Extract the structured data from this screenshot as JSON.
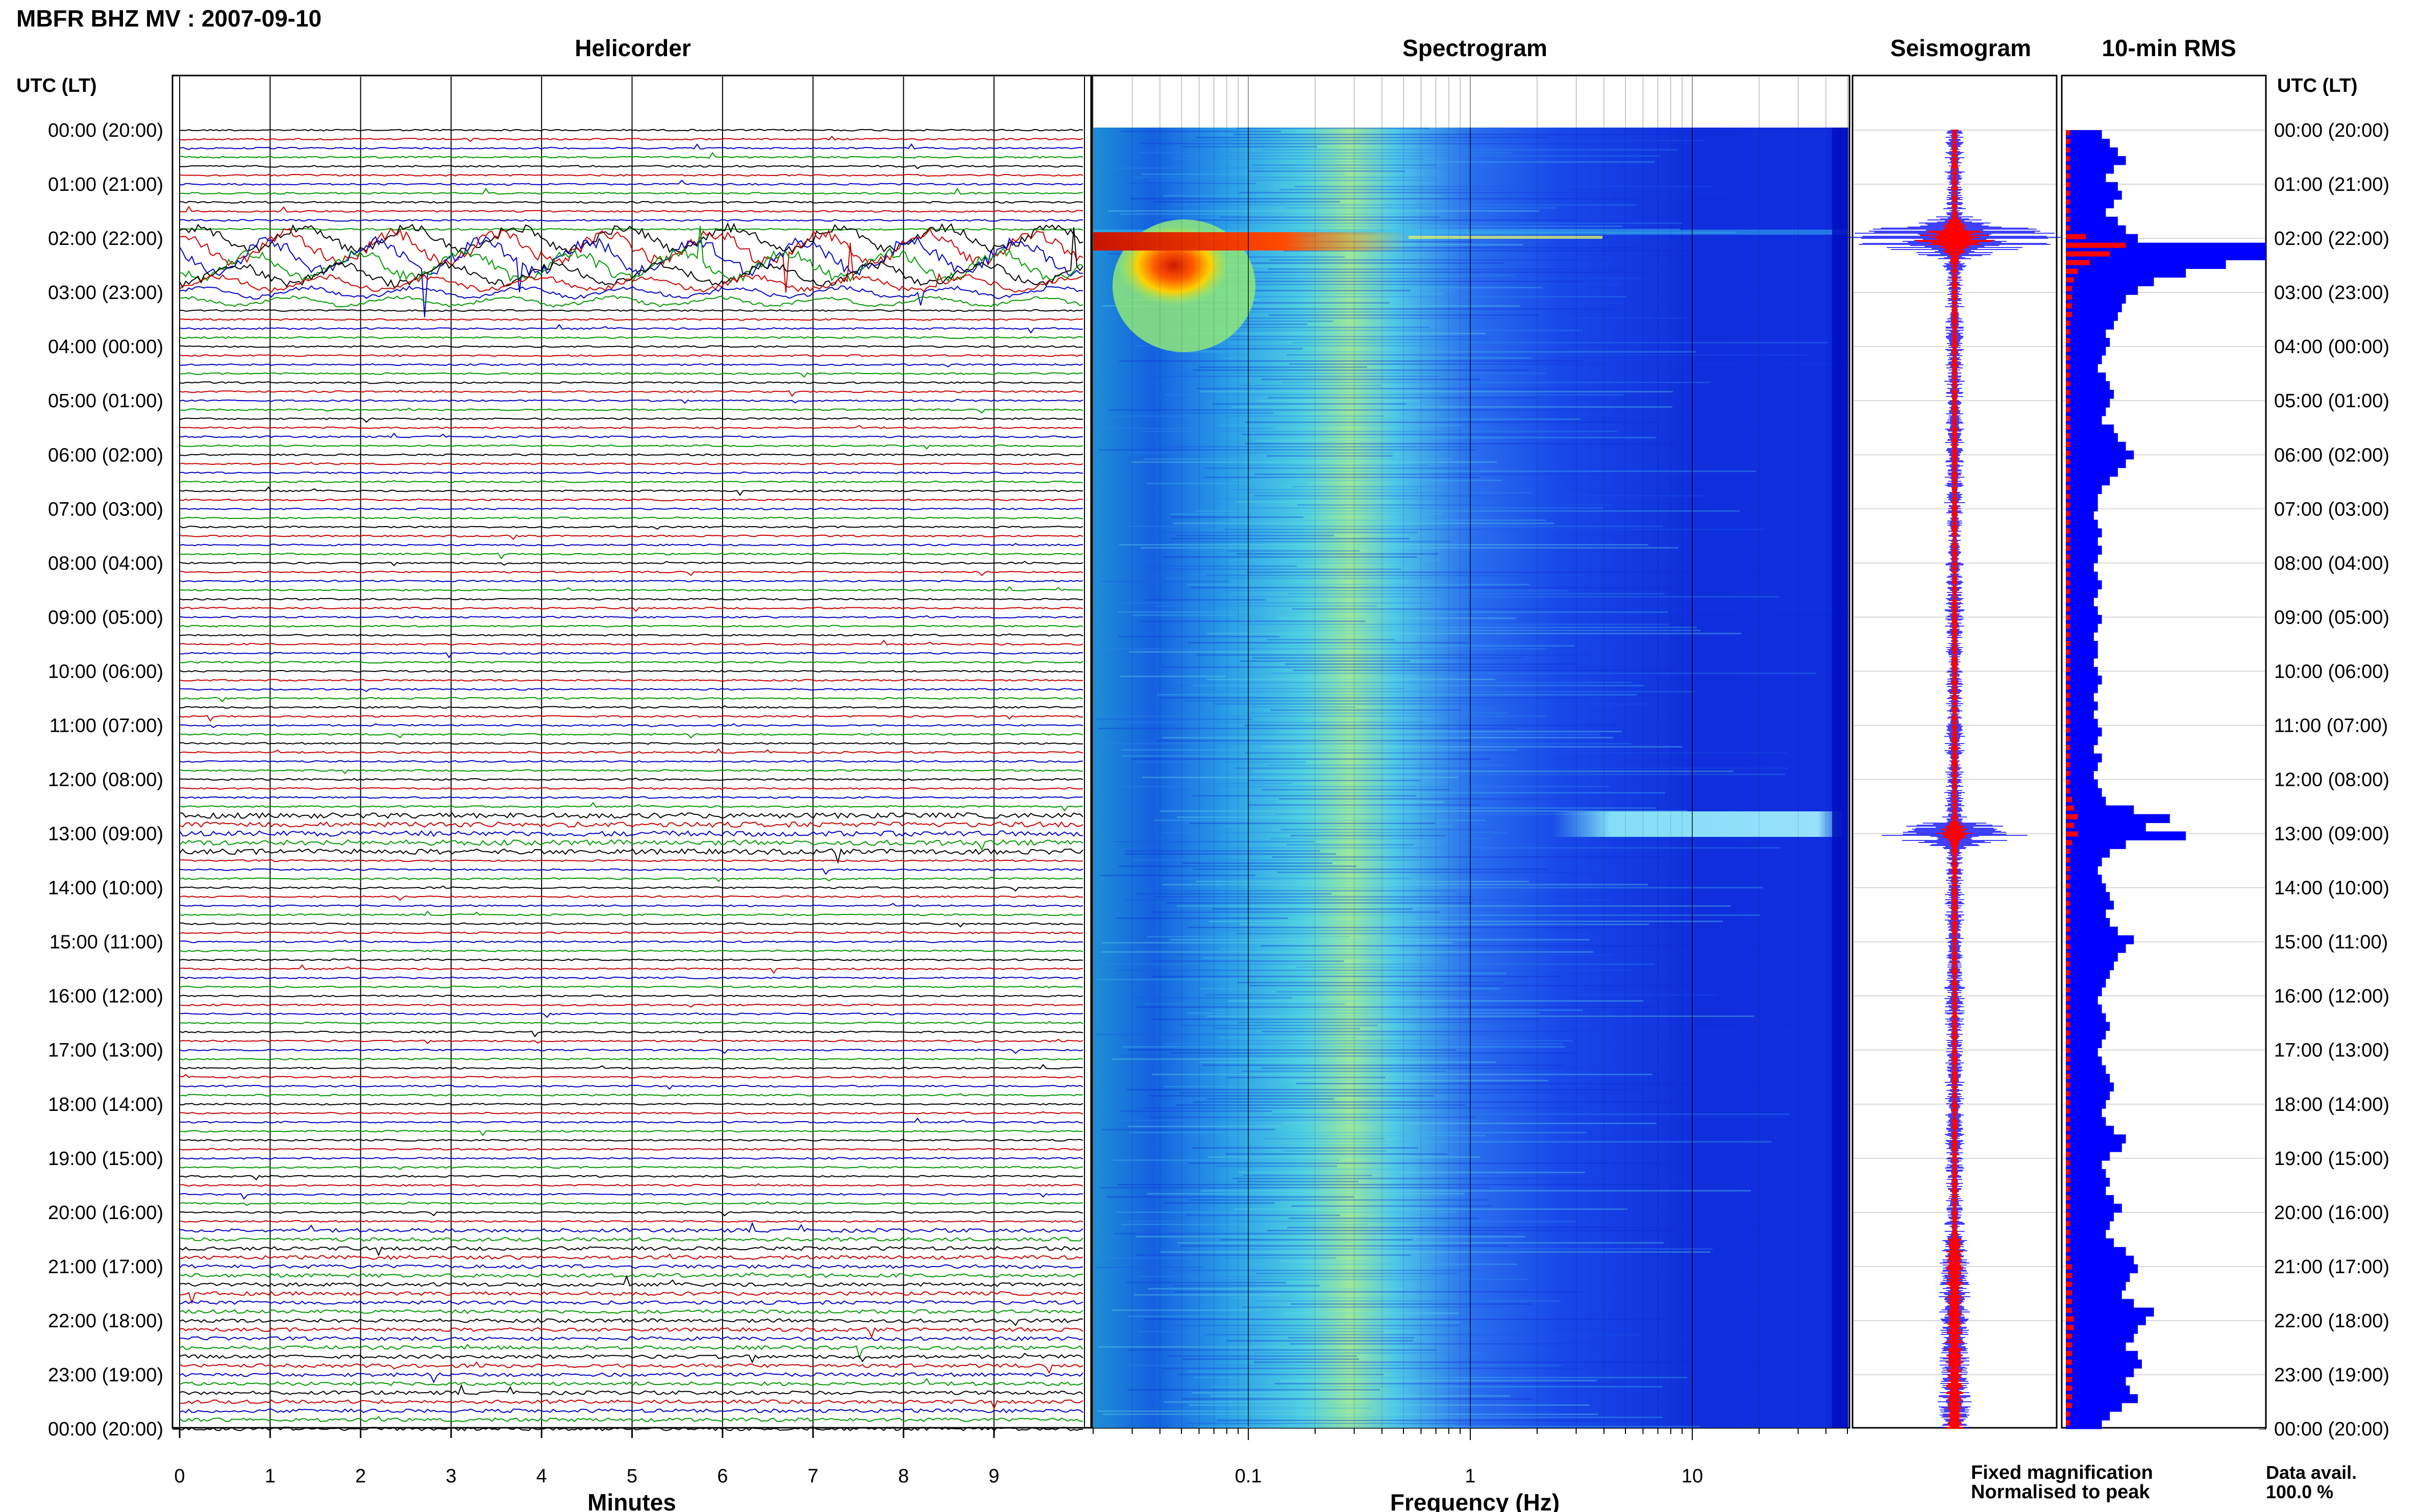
{
  "header": {
    "title": "MBFR BHZ MV : 2007-09-10"
  },
  "legend": {
    "fixed": "Fixed magnification",
    "normalised": "Normalised to peak",
    "fixed_color": "#0000ff",
    "normalised_color": "#ff0000"
  },
  "availability": {
    "label": "Data avail.",
    "value": "100.0 %"
  },
  "chart_data": [
    {
      "type": "helicorder",
      "title": "Helicorder",
      "xlabel": "Minutes",
      "xlim": [
        0,
        10
      ],
      "x_ticks": [
        "0",
        "1",
        "2",
        "3",
        "4",
        "5",
        "6",
        "7",
        "8",
        "9"
      ],
      "y_axis_label": "UTC (LT)",
      "y_ticks": [
        "00:00 (20:00)",
        "01:00 (21:00)",
        "02:00 (22:00)",
        "03:00 (23:00)",
        "04:00 (00:00)",
        "05:00 (01:00)",
        "06:00 (02:00)",
        "07:00 (03:00)",
        "08:00 (04:00)",
        "09:00 (05:00)",
        "10:00 (06:00)",
        "11:00 (07:00)",
        "12:00 (08:00)",
        "13:00 (09:00)",
        "14:00 (10:00)",
        "15:00 (11:00)",
        "16:00 (12:00)",
        "17:00 (13:00)",
        "18:00 (14:00)",
        "19:00 (15:00)",
        "20:00 (16:00)",
        "21:00 (17:00)",
        "22:00 (18:00)",
        "23:00 (19:00)",
        "00:00 (20:00)"
      ],
      "trace_colors": [
        "#000000",
        "#cc0000",
        "#0000cc",
        "#009900"
      ],
      "traces_per_hour": 6
    },
    {
      "type": "heatmap",
      "title": "Spectrogram",
      "xlabel": "Frequency (Hz)",
      "x_scale": "log",
      "xlim": [
        0.02,
        50
      ],
      "x_ticks": [
        "0.1",
        "1",
        "10"
      ],
      "x_tick_values": [
        0.1,
        1,
        10
      ]
    },
    {
      "type": "line",
      "title": "Seismogram",
      "series": [
        {
          "name": "Fixed magnification",
          "color": "#0000ff"
        },
        {
          "name": "Normalised to peak",
          "color": "#ff0000"
        }
      ],
      "events_hours_utc": [
        2.0,
        13.0
      ]
    },
    {
      "type": "bar",
      "title": "10-min RMS",
      "orientation": "horizontal",
      "y_axis_label": "UTC (LT)",
      "y_ticks": [
        "00:00 (20:00)",
        "01:00 (21:00)",
        "02:00 (22:00)",
        "03:00 (23:00)",
        "04:00 (00:00)",
        "05:00 (01:00)",
        "06:00 (02:00)",
        "07:00 (03:00)",
        "08:00 (04:00)",
        "09:00 (05:00)",
        "10:00 (06:00)",
        "11:00 (07:00)",
        "12:00 (08:00)",
        "13:00 (09:00)",
        "14:00 (10:00)",
        "15:00 (11:00)",
        "16:00 (12:00)",
        "17:00 (13:00)",
        "18:00 (14:00)",
        "19:00 (15:00)",
        "20:00 (16:00)",
        "21:00 (17:00)",
        "22:00 (18:00)",
        "23:00 (19:00)",
        "00:00 (20:00)"
      ],
      "values": [
        0.18,
        0.22,
        0.26,
        0.3,
        0.24,
        0.2,
        0.26,
        0.28,
        0.24,
        0.2,
        0.26,
        0.3,
        0.36,
        1.0,
        1.0,
        0.8,
        0.6,
        0.44,
        0.36,
        0.3,
        0.28,
        0.26,
        0.24,
        0.2,
        0.22,
        0.2,
        0.18,
        0.16,
        0.2,
        0.22,
        0.24,
        0.22,
        0.2,
        0.18,
        0.24,
        0.26,
        0.3,
        0.34,
        0.3,
        0.26,
        0.22,
        0.18,
        0.16,
        0.16,
        0.14,
        0.16,
        0.18,
        0.16,
        0.18,
        0.16,
        0.14,
        0.16,
        0.18,
        0.16,
        0.14,
        0.16,
        0.18,
        0.16,
        0.14,
        0.16,
        0.16,
        0.14,
        0.16,
        0.18,
        0.16,
        0.14,
        0.16,
        0.14,
        0.16,
        0.18,
        0.16,
        0.14,
        0.18,
        0.16,
        0.14,
        0.16,
        0.18,
        0.2,
        0.34,
        0.52,
        0.4,
        0.6,
        0.3,
        0.22,
        0.18,
        0.16,
        0.18,
        0.2,
        0.22,
        0.24,
        0.2,
        0.22,
        0.26,
        0.34,
        0.3,
        0.26,
        0.24,
        0.22,
        0.2,
        0.18,
        0.16,
        0.18,
        0.2,
        0.22,
        0.2,
        0.18,
        0.16,
        0.18,
        0.2,
        0.22,
        0.24,
        0.22,
        0.2,
        0.18,
        0.2,
        0.24,
        0.3,
        0.28,
        0.22,
        0.18,
        0.2,
        0.22,
        0.2,
        0.24,
        0.28,
        0.24,
        0.22,
        0.2,
        0.24,
        0.3,
        0.34,
        0.36,
        0.32,
        0.3,
        0.28,
        0.34,
        0.44,
        0.4,
        0.36,
        0.34,
        0.3,
        0.36,
        0.38,
        0.34,
        0.3,
        0.32,
        0.36,
        0.28,
        0.22,
        0.18
      ],
      "normalised_values": [
        0.02,
        0.02,
        0.02,
        0.02,
        0.02,
        0.02,
        0.02,
        0.02,
        0.02,
        0.02,
        0.02,
        0.02,
        0.1,
        0.3,
        0.22,
        0.12,
        0.06,
        0.04,
        0.03,
        0.03,
        0.03,
        0.03,
        0.02,
        0.02,
        0.02,
        0.02,
        0.02,
        0.02,
        0.02,
        0.02,
        0.02,
        0.02,
        0.02,
        0.02,
        0.02,
        0.02,
        0.02,
        0.02,
        0.02,
        0.02,
        0.02,
        0.02,
        0.02,
        0.02,
        0.02,
        0.02,
        0.02,
        0.02,
        0.02,
        0.02,
        0.02,
        0.02,
        0.02,
        0.02,
        0.02,
        0.02,
        0.02,
        0.02,
        0.02,
        0.02,
        0.02,
        0.02,
        0.02,
        0.02,
        0.02,
        0.02,
        0.02,
        0.02,
        0.02,
        0.02,
        0.02,
        0.02,
        0.02,
        0.02,
        0.02,
        0.02,
        0.02,
        0.03,
        0.04,
        0.06,
        0.04,
        0.06,
        0.03,
        0.02,
        0.02,
        0.02,
        0.02,
        0.02,
        0.02,
        0.02,
        0.02,
        0.02,
        0.02,
        0.02,
        0.02,
        0.02,
        0.02,
        0.02,
        0.02,
        0.02,
        0.02,
        0.02,
        0.02,
        0.02,
        0.02,
        0.02,
        0.02,
        0.02,
        0.02,
        0.02,
        0.02,
        0.02,
        0.02,
        0.02,
        0.02,
        0.02,
        0.02,
        0.02,
        0.02,
        0.02,
        0.02,
        0.02,
        0.02,
        0.02,
        0.02,
        0.02,
        0.02,
        0.02,
        0.02,
        0.02,
        0.02,
        0.03,
        0.03,
        0.03,
        0.03,
        0.03,
        0.03,
        0.04,
        0.04,
        0.03,
        0.03,
        0.03,
        0.03,
        0.03,
        0.03,
        0.03,
        0.03,
        0.03,
        0.02,
        0.02,
        0.02
      ]
    }
  ]
}
